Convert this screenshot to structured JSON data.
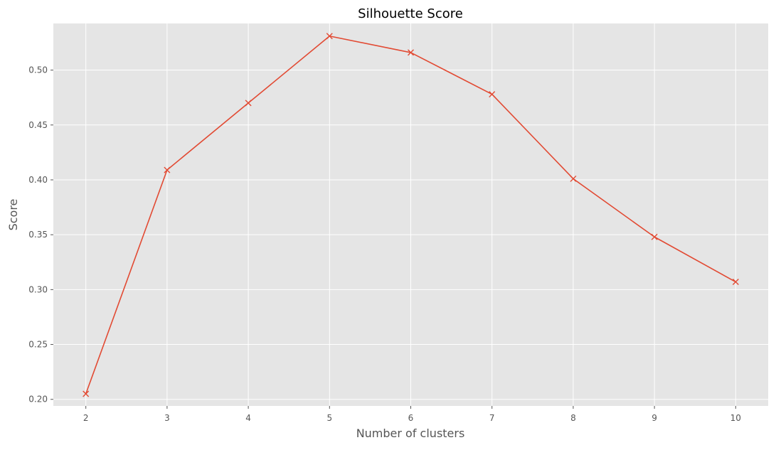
{
  "chart_data": {
    "type": "line",
    "title": "Silhouette Score",
    "xlabel": "Number of clusters",
    "ylabel": "Score",
    "x": [
      2,
      3,
      4,
      5,
      6,
      7,
      8,
      9,
      10
    ],
    "series": [
      {
        "values": [
          0.205,
          0.409,
          0.47,
          0.531,
          0.516,
          0.478,
          0.401,
          0.348,
          0.307
        ],
        "color": "#E24A33",
        "marker": "x"
      }
    ],
    "xticks": [
      2,
      3,
      4,
      5,
      6,
      7,
      8,
      9,
      10
    ],
    "xtick_labels": [
      "2",
      "3",
      "4",
      "5",
      "6",
      "7",
      "8",
      "9",
      "10"
    ],
    "yticks": [
      0.2,
      0.25,
      0.3,
      0.35,
      0.4,
      0.45,
      0.5
    ],
    "ytick_labels": [
      "0.20",
      "0.25",
      "0.30",
      "0.35",
      "0.40",
      "0.45",
      "0.50"
    ],
    "xlim": [
      1.6,
      10.4
    ],
    "ylim": [
      0.194,
      0.5425
    ],
    "grid": true,
    "plot_background": "#E5E5E5",
    "grid_color": "#FFFFFF"
  }
}
